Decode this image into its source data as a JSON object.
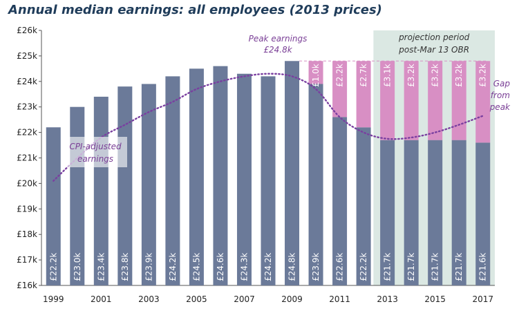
{
  "chart_data": {
    "type": "bar",
    "title": "Annual median earnings: all employees (2013 prices)",
    "years": [
      1999,
      2000,
      2001,
      2002,
      2003,
      2004,
      2005,
      2006,
      2007,
      2008,
      2009,
      2010,
      2011,
      2012,
      2013,
      2014,
      2015,
      2016,
      2017
    ],
    "values": [
      22.2,
      23.0,
      23.4,
      23.8,
      23.9,
      24.2,
      24.5,
      24.6,
      24.3,
      24.2,
      24.8,
      23.9,
      22.6,
      22.2,
      21.7,
      21.7,
      21.7,
      21.7,
      21.6
    ],
    "value_labels": [
      "£22.2k",
      "£23.0k",
      "£23.4k",
      "£23.8k",
      "£23.9k",
      "£24.2k",
      "£24.5k",
      "£24.6k",
      "£24.3k",
      "£24.2k",
      "£24.8k",
      "£23.9k",
      "£22.6k",
      "£22.2k",
      "£21.7k",
      "£21.7k",
      "£21.7k",
      "£21.7k",
      "£21.6k"
    ],
    "gap_labels": [
      "",
      "",
      "",
      "",
      "",
      "",
      "",
      "",
      "",
      "",
      "",
      "£1.0k",
      "£2.2k",
      "£2.7k",
      "£3.1k",
      "£3.2k",
      "£3.2k",
      "£3.2k",
      "£3.2k"
    ],
    "peak_value": 24.8,
    "cpi_adjusted": [
      20.1,
      21.0,
      21.8,
      22.3,
      22.8,
      23.2,
      23.7,
      24.0,
      24.2,
      24.3,
      24.2,
      23.7,
      22.6,
      22.0,
      21.75,
      21.8,
      22.0,
      22.3,
      22.65
    ],
    "x_tick_labels": [
      "1999",
      "2001",
      "2003",
      "2005",
      "2007",
      "2009",
      "2011",
      "2013",
      "2015",
      "2017"
    ],
    "y_ticks": [
      16,
      17,
      18,
      19,
      20,
      21,
      22,
      23,
      24,
      25,
      26
    ],
    "y_tick_labels": [
      "£16k",
      "£17k",
      "£18k",
      "£19k",
      "£20k",
      "£21k",
      "£22k",
      "£23k",
      "£24k",
      "£25k",
      "£26k"
    ],
    "ylim": [
      16,
      26
    ],
    "projection_from_year": 2013,
    "colors": {
      "bar": "#6b7a99",
      "gap": "#d88fc4",
      "line": "#7a3fa0",
      "projection_bg": "#dbe8e3",
      "annotation": "#7a3f96"
    },
    "annotations": {
      "peak_line1": "Peak earnings",
      "peak_line2": "£24.8k",
      "cpi_line1": "CPI-adjusted",
      "cpi_line2": "earnings",
      "gap_line1": "Gap",
      "gap_line2": "from",
      "gap_line3": "peak",
      "projection_line1": "projection period",
      "projection_line2": "post-Mar 13 OBR"
    }
  }
}
